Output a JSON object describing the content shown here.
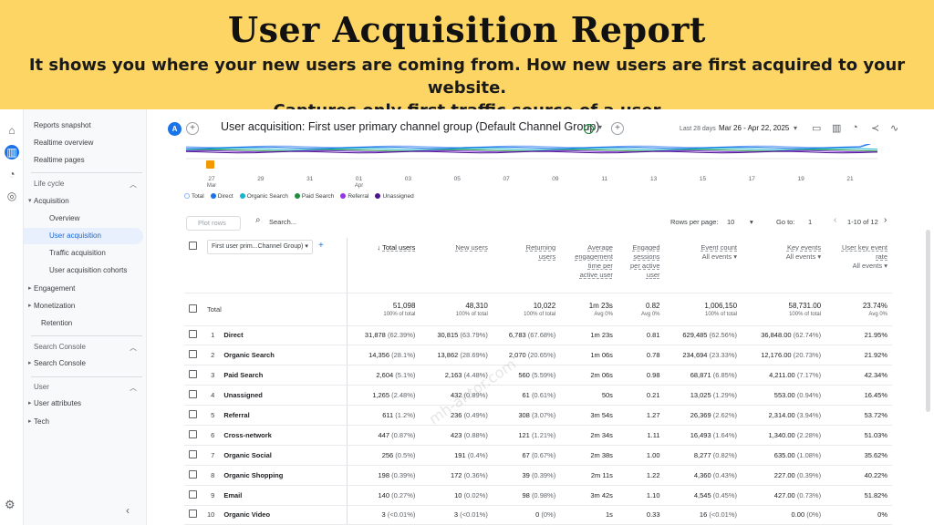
{
  "banner": {
    "title": "User Acquisition Report",
    "subtitle_line1": "It shows you where your new users are coming from. How new users are first acquired to your website.",
    "subtitle_line2": "Captures only first traffic source of a user"
  },
  "rail": {
    "icons": [
      "home-icon",
      "reports-icon",
      "explore-icon",
      "advertising-icon",
      "settings-icon"
    ]
  },
  "sidenav": {
    "reports_snapshot": "Reports snapshot",
    "realtime_overview": "Realtime overview",
    "realtime_pages": "Realtime pages",
    "lifecycle": "Life cycle",
    "acquisition": "Acquisition",
    "overview": "Overview",
    "user_acquisition": "User acquisition",
    "traffic_acquisition": "Traffic acquisition",
    "user_acquisition_cohorts": "User acquisition cohorts",
    "engagement": "Engagement",
    "monetization": "Monetization",
    "retention": "Retention",
    "search_console_section": "Search Console",
    "search_console": "Search Console",
    "user_section": "User",
    "user_attributes": "User attributes",
    "tech": "Tech"
  },
  "topbar": {
    "avatar": "A",
    "title": "User acquisition: First user primary channel group (Default Channel Group)",
    "date_label": "Last 28 days",
    "date_range": "Mar 26 - Apr 22, 2025"
  },
  "chart_data": {
    "type": "line",
    "x": [
      "27 Mar",
      "29",
      "31",
      "01 Apr",
      "03",
      "05",
      "07",
      "09",
      "11",
      "13",
      "15",
      "17",
      "19",
      "21"
    ],
    "tick_labels": [
      "27",
      "29",
      "31",
      "01",
      "03",
      "05",
      "07",
      "09",
      "11",
      "13",
      "15",
      "17",
      "19",
      "21"
    ],
    "tick_sublabels": {
      "0": "Mar",
      "3": "Apr"
    },
    "y_tick": "0",
    "series": [
      {
        "name": "Total",
        "color": "#8ab4f8"
      },
      {
        "name": "Direct",
        "color": "#1a73e8"
      },
      {
        "name": "Organic Search",
        "color": "#12b5cb"
      },
      {
        "name": "Paid Search",
        "color": "#1e8e3e"
      },
      {
        "name": "Referral",
        "color": "#9334e6"
      },
      {
        "name": "Unassigned",
        "color": "#4a148c"
      }
    ]
  },
  "controls": {
    "plot_rows": "Plot rows",
    "search_placeholder": "Search...",
    "rows_per_page_label": "Rows per page:",
    "rows_per_page": "10",
    "goto_label": "Go to:",
    "goto_value": "1",
    "pagination": "1-10 of 12"
  },
  "table": {
    "dimension": "First user prim...Channel Group)",
    "headers": {
      "total_users": "Total users",
      "new_users": "New users",
      "returning_users": [
        "Returning",
        "users"
      ],
      "avg_engagement": [
        "Average",
        "engagement",
        "time per",
        "active user"
      ],
      "engaged_sessions": [
        "Engaged",
        "sessions",
        "per active",
        "user"
      ],
      "event_count": "Event count",
      "event_count_sub": "All events",
      "key_events": "Key events",
      "key_events_sub": "All events",
      "user_key_event_rate": [
        "User key event",
        "rate"
      ],
      "user_key_event_rate_sub": "All events"
    },
    "total": {
      "label": "Total",
      "total_users": "51,098",
      "total_users_sub": "100% of total",
      "new_users": "48,310",
      "new_users_sub": "100% of total",
      "returning": "10,022",
      "returning_sub": "100% of total",
      "avg_engagement": "1m 23s",
      "avg_engagement_sub": "Avg 0%",
      "engaged_sessions": "0.82",
      "engaged_sessions_sub": "Avg 0%",
      "event_count": "1,006,150",
      "event_count_sub": "100% of total",
      "key_events": "58,731.00",
      "key_events_sub": "100% of total",
      "rate": "23.74%",
      "rate_sub": "Avg 0%"
    },
    "rows": [
      [
        "1",
        "Direct",
        "31,878",
        "(62.39%)",
        "30,815",
        "(63.79%)",
        "6,783",
        "(67.68%)",
        "1m 23s",
        "0.81",
        "629,485",
        "(62.56%)",
        "36,848.00",
        "(62.74%)",
        "21.95%"
      ],
      [
        "2",
        "Organic Search",
        "14,356",
        "(28.1%)",
        "13,862",
        "(28.69%)",
        "2,070",
        "(20.65%)",
        "1m 06s",
        "0.78",
        "234,694",
        "(23.33%)",
        "12,176.00",
        "(20.73%)",
        "21.92%"
      ],
      [
        "3",
        "Paid Search",
        "2,604",
        "(5.1%)",
        "2,163",
        "(4.48%)",
        "560",
        "(5.59%)",
        "2m 06s",
        "0.98",
        "68,871",
        "(6.85%)",
        "4,211.00",
        "(7.17%)",
        "42.34%"
      ],
      [
        "4",
        "Unassigned",
        "1,265",
        "(2.48%)",
        "432",
        "(0.89%)",
        "61",
        "(0.61%)",
        "50s",
        "0.21",
        "13,025",
        "(1.29%)",
        "553.00",
        "(0.94%)",
        "16.45%"
      ],
      [
        "5",
        "Referral",
        "611",
        "(1.2%)",
        "236",
        "(0.49%)",
        "308",
        "(3.07%)",
        "3m 54s",
        "1.27",
        "26,369",
        "(2.62%)",
        "2,314.00",
        "(3.94%)",
        "53.72%"
      ],
      [
        "6",
        "Cross-network",
        "447",
        "(0.87%)",
        "423",
        "(0.88%)",
        "121",
        "(1.21%)",
        "2m 34s",
        "1.11",
        "16,493",
        "(1.64%)",
        "1,340.00",
        "(2.28%)",
        "51.03%"
      ],
      [
        "7",
        "Organic Social",
        "256",
        "(0.5%)",
        "191",
        "(0.4%)",
        "67",
        "(0.67%)",
        "2m 38s",
        "1.00",
        "8,277",
        "(0.82%)",
        "635.00",
        "(1.08%)",
        "35.62%"
      ],
      [
        "8",
        "Organic Shopping",
        "198",
        "(0.39%)",
        "172",
        "(0.36%)",
        "39",
        "(0.39%)",
        "2m 11s",
        "1.22",
        "4,360",
        "(0.43%)",
        "227.00",
        "(0.39%)",
        "40.22%"
      ],
      [
        "9",
        "Email",
        "140",
        "(0.27%)",
        "10",
        "(0.02%)",
        "98",
        "(0.98%)",
        "3m 42s",
        "1.10",
        "4,545",
        "(0.45%)",
        "427.00",
        "(0.73%)",
        "51.82%"
      ],
      [
        "10",
        "Organic Video",
        "3",
        "(<0.01%)",
        "3",
        "(<0.01%)",
        "0",
        "(0%)",
        "1s",
        "0.33",
        "16",
        "(<0.01%)",
        "0.00",
        "(0%)",
        "0%"
      ]
    ]
  },
  "watermark": "mh-antor.com"
}
